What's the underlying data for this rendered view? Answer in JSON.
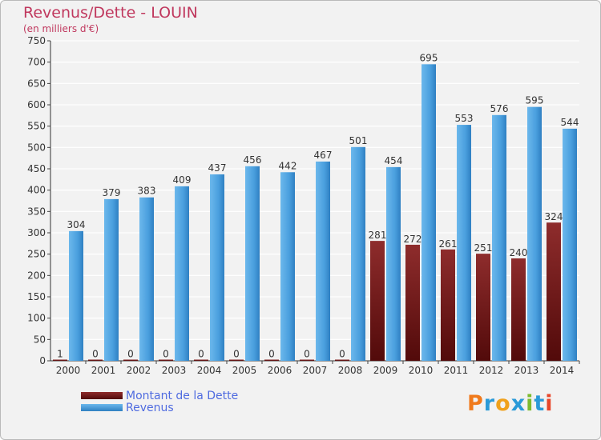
{
  "title": "Revenus/Dette - LOUIN",
  "subtitle": "(en milliers d'€)",
  "logo": {
    "text": "Proxiti",
    "colors": [
      "#f07a1c",
      "#2a9ad8",
      "#f0a11c",
      "#2a9ad8",
      "#7dbb2f",
      "#2a9ad8",
      "#e8462a"
    ]
  },
  "colors": {
    "debt": "#7a1f1f",
    "revenue": "#4a9fde",
    "title": "#c0385e",
    "legend_text": "#4f6be0"
  },
  "chart_data": {
    "type": "bar",
    "categories": [
      "2000",
      "2001",
      "2002",
      "2003",
      "2004",
      "2005",
      "2006",
      "2007",
      "2008",
      "2009",
      "2010",
      "2011",
      "2012",
      "2013",
      "2014"
    ],
    "series": [
      {
        "name": "Montant de la Dette",
        "values": [
          1,
          0,
          0,
          0,
          0,
          0,
          0,
          0,
          0,
          281,
          272,
          261,
          251,
          240,
          324
        ]
      },
      {
        "name": "Revenus",
        "values": [
          304,
          379,
          383,
          409,
          437,
          456,
          442,
          467,
          501,
          454,
          695,
          553,
          576,
          595,
          544
        ]
      }
    ],
    "ylim": [
      0,
      750
    ],
    "yticks": [
      0,
      50,
      100,
      150,
      200,
      250,
      300,
      350,
      400,
      450,
      500,
      550,
      600,
      650,
      700,
      750
    ],
    "grid": true,
    "legend": "bottom-left"
  }
}
